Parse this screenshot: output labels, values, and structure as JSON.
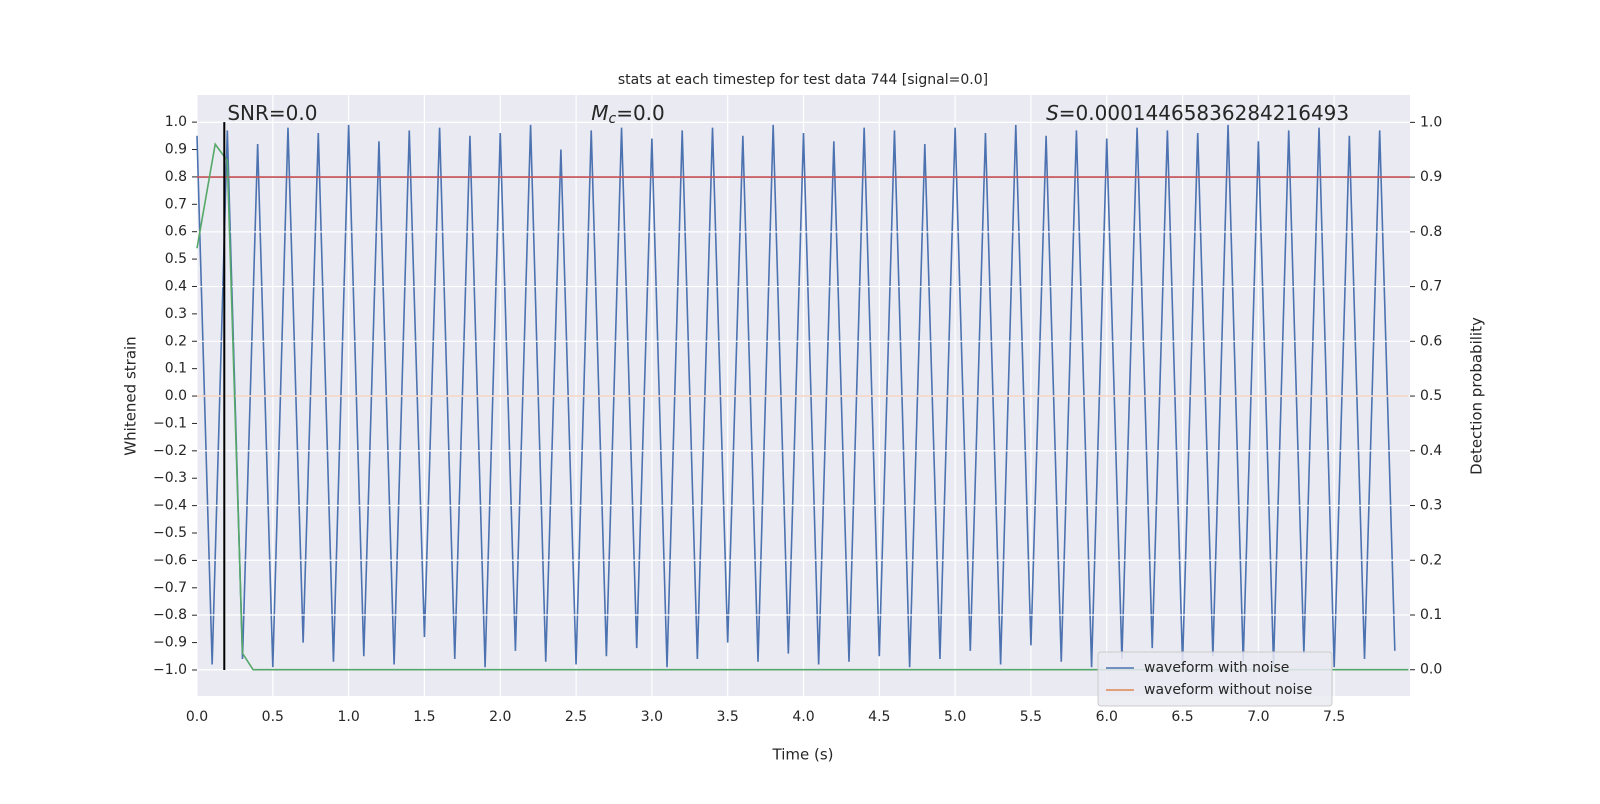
{
  "chart_data": {
    "type": "line",
    "title": "stats at each timestep for test data 744 [signal=0.0]",
    "xlabel": "Time (s)",
    "ylabel": "Whitened strain",
    "y2label": "Detection probability",
    "annotations": [
      {
        "text": "SNR=0.0",
        "x": 0.2
      },
      {
        "symbol": "M",
        "subscript": "c",
        "text": "=0.0",
        "x": 2.6
      },
      {
        "symbol": "S",
        "text": "=0.00014465836284216493",
        "x": 5.6
      }
    ],
    "xlim": [
      0,
      8
    ],
    "ylim": [
      -1.095,
      1.099
    ],
    "y2lim": [
      -0.048,
      1.05
    ],
    "xticks": [
      {
        "value": 0,
        "label": "0.0"
      },
      {
        "value": 0.5,
        "label": "0.5"
      },
      {
        "value": 1,
        "label": "1.0"
      },
      {
        "value": 1.5,
        "label": "1.5"
      },
      {
        "value": 2,
        "label": "2.0"
      },
      {
        "value": 2.5,
        "label": "2.5"
      },
      {
        "value": 3,
        "label": "3.0"
      },
      {
        "value": 3.5,
        "label": "3.5"
      },
      {
        "value": 4,
        "label": "4.0"
      },
      {
        "value": 4.5,
        "label": "4.5"
      },
      {
        "value": 5,
        "label": "5.0"
      },
      {
        "value": 5.5,
        "label": "5.5"
      },
      {
        "value": 6,
        "label": "6.0"
      },
      {
        "value": 6.5,
        "label": "6.5"
      },
      {
        "value": 7,
        "label": "7.0"
      },
      {
        "value": 7.5,
        "label": "7.5"
      }
    ],
    "yticks": [
      {
        "value": 1,
        "label": "1.0"
      },
      {
        "value": 0.9,
        "label": "0.9"
      },
      {
        "value": 0.8,
        "label": "0.8"
      },
      {
        "value": 0.7,
        "label": "0.7"
      },
      {
        "value": 0.6,
        "label": "0.6"
      },
      {
        "value": 0.5,
        "label": "0.5"
      },
      {
        "value": 0.4,
        "label": "0.4"
      },
      {
        "value": 0.3,
        "label": "0.3"
      },
      {
        "value": 0.2,
        "label": "0.2"
      },
      {
        "value": 0.1,
        "label": "0.1"
      },
      {
        "value": 0,
        "label": "0.0"
      },
      {
        "value": -0.1,
        "label": "−0.1"
      },
      {
        "value": -0.2,
        "label": "−0.2"
      },
      {
        "value": -0.3,
        "label": "−0.3"
      },
      {
        "value": -0.4,
        "label": "−0.4"
      },
      {
        "value": -0.5,
        "label": "−0.5"
      },
      {
        "value": -0.6,
        "label": "−0.6"
      },
      {
        "value": -0.7,
        "label": "−0.7"
      },
      {
        "value": -0.8,
        "label": "−0.8"
      },
      {
        "value": -0.9,
        "label": "−0.9"
      },
      {
        "value": -1,
        "label": "−1.0"
      }
    ],
    "y2ticks": [
      {
        "value": 0,
        "label": "0.0"
      },
      {
        "value": 0.1,
        "label": "0.1"
      },
      {
        "value": 0.2,
        "label": "0.2"
      },
      {
        "value": 0.3,
        "label": "0.3"
      },
      {
        "value": 0.4,
        "label": "0.4"
      },
      {
        "value": 0.5,
        "label": "0.5"
      },
      {
        "value": 0.6,
        "label": "0.6"
      },
      {
        "value": 0.7,
        "label": "0.7"
      },
      {
        "value": 0.8,
        "label": "0.8"
      },
      {
        "value": 0.9,
        "label": "0.9"
      },
      {
        "value": 1,
        "label": "1.0"
      }
    ],
    "grid": true,
    "legend": "lower right",
    "series": [
      {
        "name": "waveform with noise",
        "color": "#4c72b0",
        "x": [
          0,
          0.1,
          0.2,
          0.3,
          0.4,
          0.5,
          0.6,
          0.7,
          0.8,
          0.9,
          1,
          1.1,
          1.2,
          1.3,
          1.4,
          1.5,
          1.6,
          1.7,
          1.8,
          1.9,
          2,
          2.1,
          2.2,
          2.3,
          2.4,
          2.5,
          2.6,
          2.7,
          2.8,
          2.9,
          3,
          3.1,
          3.2,
          3.3,
          3.4,
          3.5,
          3.6,
          3.7,
          3.8,
          3.9,
          4,
          4.1,
          4.2,
          4.3,
          4.4,
          4.5,
          4.6,
          4.7,
          4.8,
          4.9,
          5,
          5.1,
          5.2,
          5.3,
          5.4,
          5.5,
          5.6,
          5.7,
          5.8,
          5.9,
          6,
          6.1,
          6.2,
          6.3,
          6.4,
          6.5,
          6.6,
          6.7,
          6.8,
          6.9,
          7,
          7.1,
          7.2,
          7.3,
          7.4,
          7.5,
          7.6,
          7.7,
          7.8,
          7.9
        ],
        "values": [
          0.95,
          -0.98,
          0.97,
          -0.96,
          0.92,
          -0.99,
          0.98,
          -0.9,
          0.96,
          -0.97,
          0.99,
          -0.95,
          0.93,
          -0.98,
          0.97,
          -0.88,
          0.98,
          -0.96,
          0.95,
          -0.99,
          0.96,
          -0.93,
          0.99,
          -0.97,
          0.9,
          -0.98,
          0.97,
          -0.95,
          0.98,
          -0.92,
          0.94,
          -0.99,
          0.97,
          -0.96,
          0.98,
          -0.9,
          0.95,
          -0.97,
          0.99,
          -0.94,
          0.96,
          -0.98,
          0.93,
          -0.97,
          0.98,
          -0.95,
          0.97,
          -0.99,
          0.92,
          -0.96,
          0.98,
          -0.93,
          0.96,
          -0.98,
          0.99,
          -0.91,
          0.95,
          -0.97,
          0.97,
          -0.99,
          0.94,
          -0.96,
          0.98,
          -0.92,
          0.97,
          -0.98,
          0.96,
          -0.95,
          0.99,
          -0.97,
          0.93,
          -0.98,
          0.97,
          -0.94,
          0.98,
          -0.99,
          0.95,
          -0.96,
          0.97,
          -0.93
        ]
      },
      {
        "name": "waveform without noise",
        "color": "#dd8452",
        "x": [
          0,
          7.99
        ],
        "values": [
          0,
          0
        ]
      },
      {
        "color": "#c44e52",
        "axis": "y2",
        "x": [
          0,
          8
        ],
        "values": [
          0.9,
          0.9
        ]
      },
      {
        "color": "#55a868",
        "axis": "y2",
        "x": [
          0,
          0.12,
          0.2,
          0.3,
          0.37,
          7.99
        ],
        "values": [
          0.77,
          0.96,
          0.93,
          0.03,
          0,
          0
        ]
      }
    ],
    "vline": {
      "x": 0.18,
      "ylim": [
        -1,
        1
      ],
      "color": "#000000"
    }
  }
}
